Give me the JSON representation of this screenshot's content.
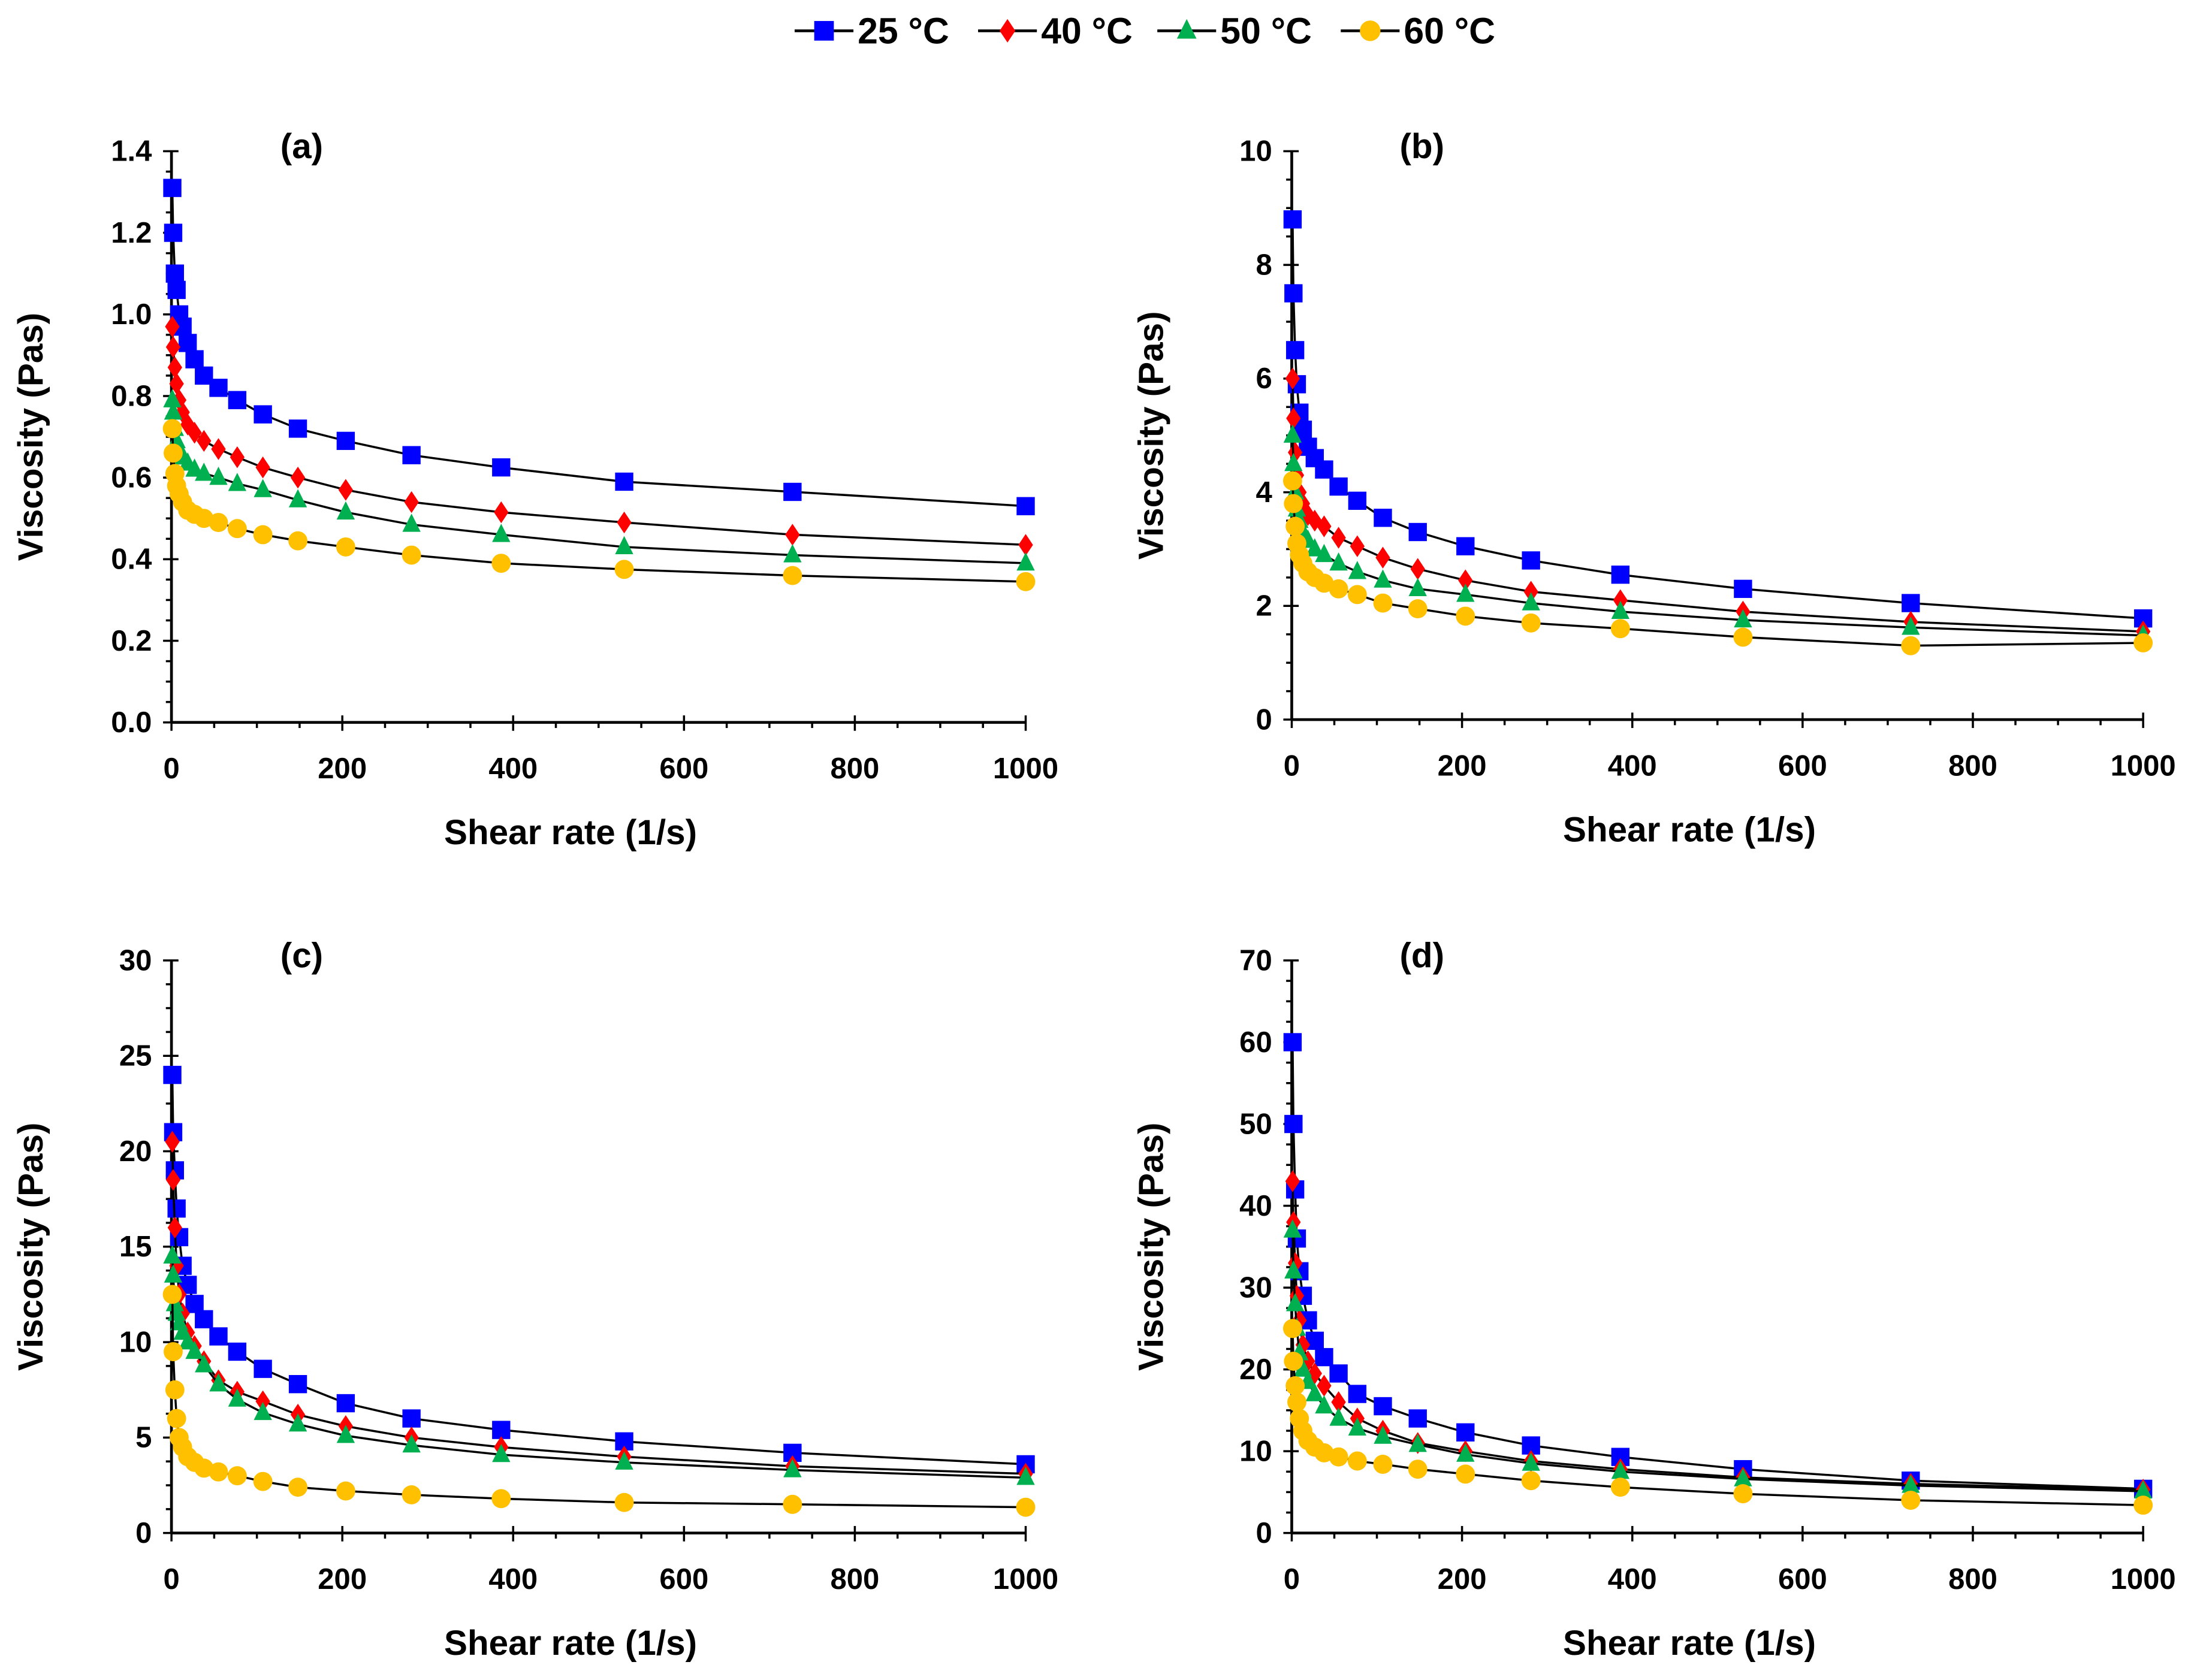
{
  "chart_data": {
    "type": "line",
    "legend": {
      "placement": "top-center",
      "entries": [
        {
          "name": "25 °C",
          "color": "#0000FF",
          "marker": "square"
        },
        {
          "name": "40 °C",
          "color": "#FF0000",
          "marker": "diamond"
        },
        {
          "name": "50 °C",
          "color": "#00B050",
          "marker": "triangle"
        },
        {
          "name": "60 °C",
          "color": "#FFC000",
          "marker": "circle"
        }
      ]
    },
    "x": [
      1,
      2,
      4,
      6,
      9,
      13,
      19,
      27,
      38,
      55,
      77,
      107,
      148,
      204,
      281,
      386,
      530,
      727,
      1000
    ],
    "panels": [
      {
        "label": "(a)",
        "xlabel": "Shear rate (1/s)",
        "ylabel": "Viscosity (Pas)",
        "xlim": [
          0,
          1000
        ],
        "ylim": [
          0,
          1.4
        ],
        "xticks": [
          "0",
          "200",
          "400",
          "600",
          "800",
          "1000"
        ],
        "yticks": [
          "0.0",
          "0.2",
          "0.4",
          "0.6",
          "0.8",
          "1.0",
          "1.2",
          "1.4"
        ],
        "series": [
          {
            "name": "25 °C",
            "values": [
              1.31,
              1.2,
              1.1,
              1.06,
              1.0,
              0.97,
              0.93,
              0.89,
              0.85,
              0.82,
              0.79,
              0.755,
              0.72,
              0.69,
              0.655,
              0.625,
              0.59,
              0.565,
              0.53
            ]
          },
          {
            "name": "40 °C",
            "values": [
              0.97,
              0.92,
              0.87,
              0.83,
              0.79,
              0.76,
              0.73,
              0.71,
              0.69,
              0.67,
              0.65,
              0.625,
              0.6,
              0.57,
              0.54,
              0.515,
              0.49,
              0.46,
              0.435
            ]
          },
          {
            "name": "50 °C",
            "values": [
              0.79,
              0.76,
              0.72,
              0.69,
              0.67,
              0.65,
              0.635,
              0.62,
              0.61,
              0.6,
              0.585,
              0.57,
              0.545,
              0.515,
              0.485,
              0.46,
              0.43,
              0.41,
              0.39
            ]
          },
          {
            "name": "60 °C",
            "values": [
              0.72,
              0.66,
              0.61,
              0.58,
              0.56,
              0.54,
              0.52,
              0.51,
              0.5,
              0.49,
              0.475,
              0.46,
              0.445,
              0.43,
              0.41,
              0.39,
              0.375,
              0.36,
              0.345
            ]
          }
        ]
      },
      {
        "label": "(b)",
        "xlabel": "Shear rate (1/s)",
        "ylabel": "Viscosity (Pas)",
        "xlim": [
          0,
          1000
        ],
        "ylim": [
          0,
          10
        ],
        "xticks": [
          "0",
          "200",
          "400",
          "600",
          "800",
          "1000"
        ],
        "yticks": [
          "0",
          "2",
          "4",
          "6",
          "8",
          "10"
        ],
        "series": [
          {
            "name": "25 °C",
            "values": [
              8.8,
              7.5,
              6.5,
              5.9,
              5.4,
              5.1,
              4.8,
              4.6,
              4.4,
              4.1,
              3.85,
              3.55,
              3.3,
              3.05,
              2.8,
              2.55,
              2.3,
              2.05,
              1.78
            ]
          },
          {
            "name": "40 °C",
            "values": [
              6.0,
              5.3,
              4.7,
              4.3,
              4.0,
              3.8,
              3.6,
              3.5,
              3.4,
              3.2,
              3.05,
              2.85,
              2.65,
              2.45,
              2.25,
              2.1,
              1.9,
              1.72,
              1.55
            ]
          },
          {
            "name": "50 °C",
            "values": [
              5.0,
              4.5,
              4.0,
              3.7,
              3.5,
              3.3,
              3.15,
              3.0,
              2.9,
              2.75,
              2.6,
              2.45,
              2.3,
              2.2,
              2.05,
              1.9,
              1.75,
              1.62,
              1.48
            ]
          },
          {
            "name": "60 °C",
            "values": [
              4.2,
              3.8,
              3.4,
              3.1,
              2.9,
              2.75,
              2.6,
              2.5,
              2.4,
              2.3,
              2.2,
              2.05,
              1.95,
              1.82,
              1.7,
              1.6,
              1.45,
              1.3,
              1.35
            ]
          }
        ]
      },
      {
        "label": "(c)",
        "xlabel": "Shear rate (1/s)",
        "ylabel": "Viscosity (Pas)",
        "xlim": [
          0,
          1000
        ],
        "ylim": [
          0,
          30
        ],
        "xticks": [
          "0",
          "200",
          "400",
          "600",
          "800",
          "1000"
        ],
        "yticks": [
          "0",
          "5",
          "10",
          "15",
          "20",
          "25",
          "30"
        ],
        "series": [
          {
            "name": "25 °C",
            "values": [
              24,
              21,
              19,
              17,
              15.5,
              14,
              13,
              12,
              11.2,
              10.3,
              9.5,
              8.6,
              7.8,
              6.8,
              6.0,
              5.4,
              4.8,
              4.2,
              3.6
            ]
          },
          {
            "name": "40 °C",
            "values": [
              20.5,
              18.5,
              16,
              14,
              12.5,
              11.5,
              10.5,
              9.8,
              9.0,
              8.0,
              7.4,
              6.9,
              6.2,
              5.6,
              5.0,
              4.5,
              4.0,
              3.5,
              3.1
            ]
          },
          {
            "name": "50 °C",
            "values": [
              14.5,
              13.5,
              12,
              11.5,
              11,
              10.5,
              10,
              9.5,
              8.8,
              7.8,
              7.0,
              6.3,
              5.7,
              5.1,
              4.6,
              4.1,
              3.7,
              3.3,
              2.9
            ]
          },
          {
            "name": "60 °C",
            "values": [
              12.5,
              9.5,
              7.5,
              6,
              5,
              4.5,
              4.0,
              3.7,
              3.4,
              3.2,
              3.0,
              2.7,
              2.4,
              2.2,
              2.0,
              1.8,
              1.6,
              1.5,
              1.35
            ]
          }
        ]
      },
      {
        "label": "(d)",
        "xlabel": "Shear rate (1/s)",
        "ylabel": "Viscosity (Pas)",
        "xlim": [
          0,
          1000
        ],
        "ylim": [
          0,
          70
        ],
        "xticks": [
          "0",
          "200",
          "400",
          "600",
          "800",
          "1000"
        ],
        "yticks": [
          "0",
          "10",
          "20",
          "30",
          "40",
          "50",
          "60",
          "70"
        ],
        "series": [
          {
            "name": "25 °C",
            "values": [
              60,
              50,
              42,
              36,
              32,
              29,
              26,
              23.5,
              21.5,
              19.5,
              17,
              15.5,
              14,
              12.3,
              10.7,
              9.3,
              7.8,
              6.4,
              5.4
            ]
          },
          {
            "name": "40 °C",
            "values": [
              43,
              38,
              33,
              29,
              26,
              23,
              21,
              19.5,
              18,
              16,
              14,
              12.5,
              11,
              10,
              8.8,
              7.8,
              6.8,
              6,
              5.3
            ]
          },
          {
            "name": "50 °C",
            "values": [
              37,
              32,
              28,
              25,
              22,
              20,
              18.5,
              17,
              15.5,
              14,
              12.8,
              11.8,
              10.8,
              9.6,
              8.5,
              7.5,
              6.6,
              5.8,
              5.1
            ]
          },
          {
            "name": "60 °C",
            "values": [
              25,
              21,
              18,
              16,
              14,
              12.5,
              11.3,
              10.5,
              9.8,
              9.3,
              8.8,
              8.4,
              7.8,
              7.2,
              6.4,
              5.6,
              4.8,
              4.0,
              3.4
            ]
          }
        ]
      }
    ]
  }
}
